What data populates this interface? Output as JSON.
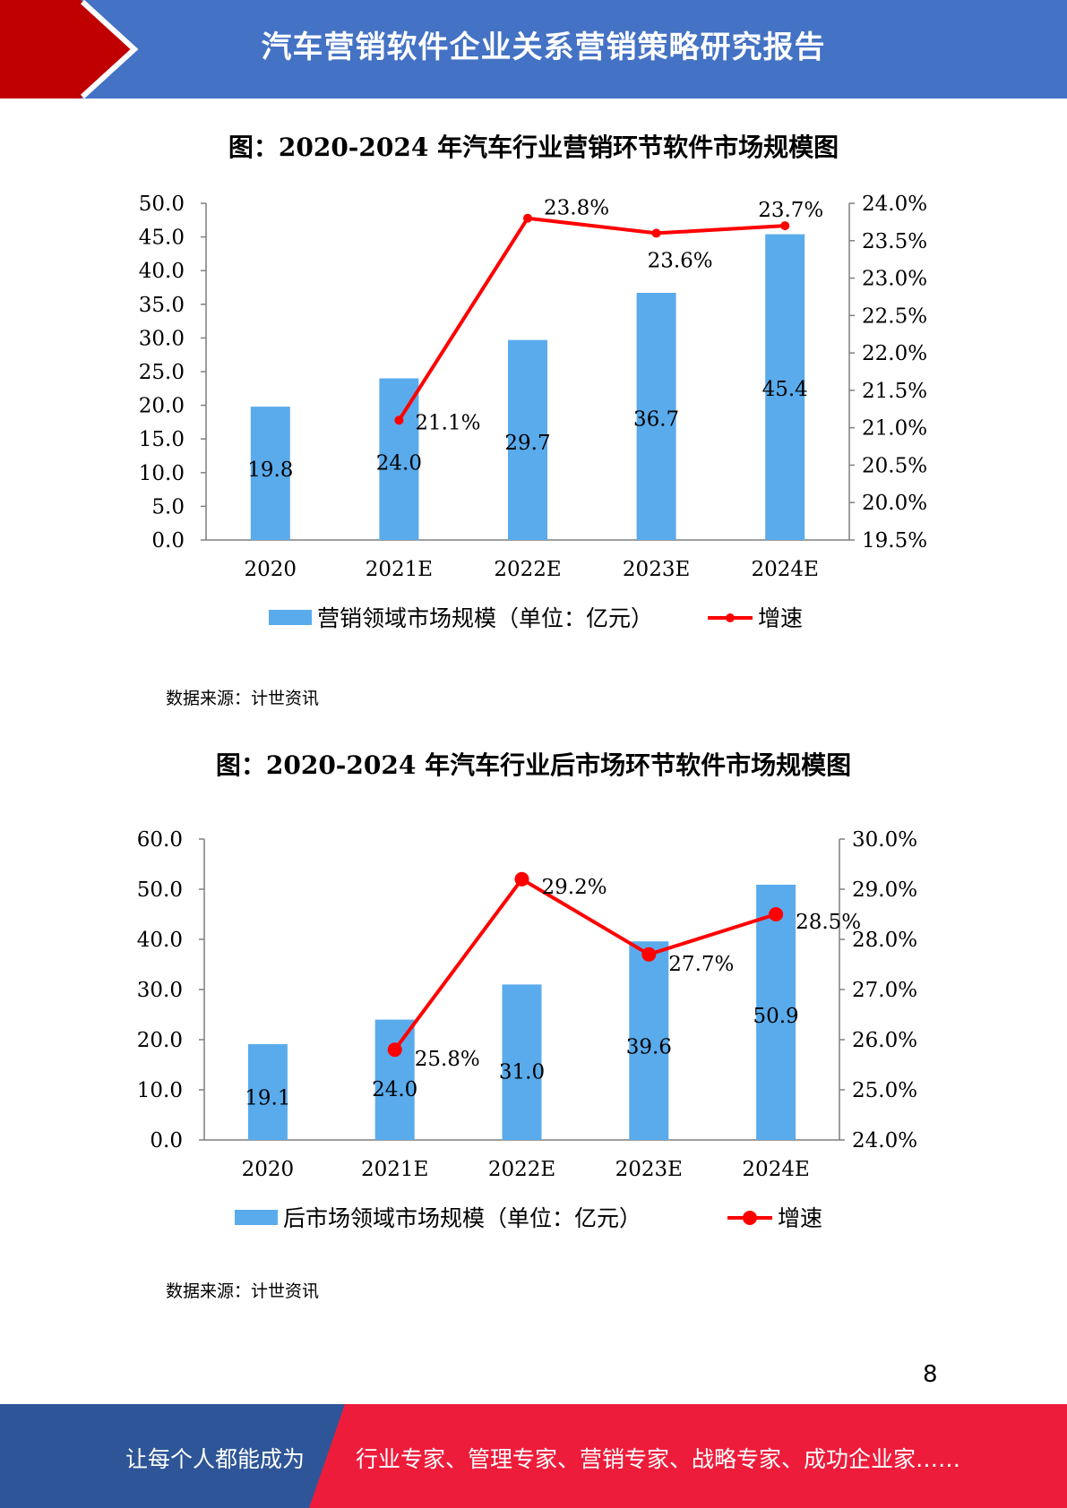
{
  "header": {
    "title": "汽车营销软件企业关系营销策略研究报告"
  },
  "colors": {
    "header_blue": "#4472c4",
    "accent_red": "#c00000",
    "bar_blue": "#5aabec",
    "line_red": "#ff0000",
    "footer_red": "#ee1c3b",
    "footer_blue": "#2e5597"
  },
  "charts": [
    {
      "title": "图：2020-2024 年汽车行业营销环节软件市场规模图",
      "source": "数据来源：计世资讯"
    },
    {
      "title": "图：2020-2024 年汽车行业后市场环节软件市场规模图",
      "source": "数据来源：计世资讯"
    }
  ],
  "chart_data": [
    {
      "type": "bar",
      "categories": [
        "2020",
        "2021E",
        "2022E",
        "2023E",
        "2024E"
      ],
      "series": [
        {
          "name": "营销领域市场规模（单位：亿元）",
          "type": "bar",
          "axis": "left",
          "values": [
            19.8,
            24.0,
            29.7,
            36.7,
            45.4
          ],
          "labels": [
            "19.8",
            "24.0",
            "29.7",
            "36.7",
            "45.4"
          ]
        },
        {
          "name": "增速",
          "type": "line",
          "axis": "right",
          "values": [
            null,
            21.1,
            23.8,
            23.6,
            23.7
          ],
          "labels": [
            "",
            "21.1%",
            "23.8%",
            "23.6%",
            "23.7%"
          ]
        }
      ],
      "y_left": {
        "min": 0,
        "max": 50,
        "ticks": [
          "0.0",
          "5.0",
          "10.0",
          "15.0",
          "20.0",
          "25.0",
          "30.0",
          "35.0",
          "40.0",
          "45.0",
          "50.0"
        ]
      },
      "y_right": {
        "min": 19.5,
        "max": 24.0,
        "ticks": [
          "19.5%",
          "20.0%",
          "20.5%",
          "21.0%",
          "21.5%",
          "22.0%",
          "22.5%",
          "23.0%",
          "23.5%",
          "24.0%"
        ]
      },
      "legend_position": "bottom"
    },
    {
      "type": "bar",
      "categories": [
        "2020",
        "2021E",
        "2022E",
        "2023E",
        "2024E"
      ],
      "series": [
        {
          "name": "后市场领域市场规模（单位：亿元）",
          "type": "bar",
          "axis": "left",
          "values": [
            19.1,
            24.0,
            31.0,
            39.6,
            50.9
          ],
          "labels": [
            "19.1",
            "24.0",
            "31.0",
            "39.6",
            "50.9"
          ]
        },
        {
          "name": "增速",
          "type": "line",
          "axis": "right",
          "values": [
            null,
            25.8,
            29.2,
            27.7,
            28.5
          ],
          "labels": [
            "",
            "25.8%",
            "29.2%",
            "27.7%",
            "28.5%"
          ]
        }
      ],
      "y_left": {
        "min": 0,
        "max": 60,
        "ticks": [
          "0.0",
          "10.0",
          "20.0",
          "30.0",
          "40.0",
          "50.0",
          "60.0"
        ]
      },
      "y_right": {
        "min": 24.0,
        "max": 30.0,
        "ticks": [
          "24.0%",
          "25.0%",
          "26.0%",
          "27.0%",
          "28.0%",
          "29.0%",
          "30.0%"
        ]
      },
      "legend_position": "bottom"
    }
  ],
  "page_number": "8",
  "footer": {
    "left_text": "让每个人都能成为",
    "right_text": "行业专家、管理专家、营销专家、战略专家、成功企业家……"
  }
}
